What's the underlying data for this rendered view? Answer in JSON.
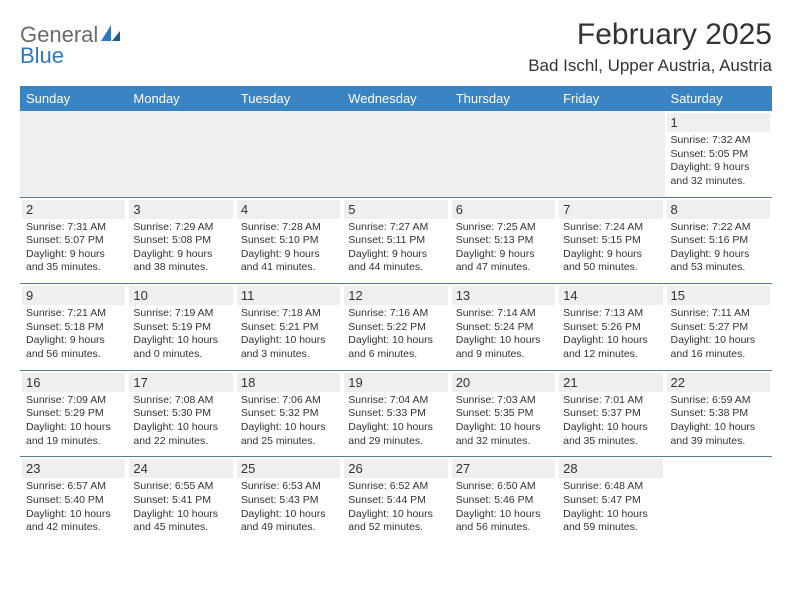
{
  "brand": {
    "part1": "General",
    "part2": "Blue",
    "sail_color": "#2f78bd"
  },
  "header": {
    "month_title": "February 2025",
    "location": "Bad Ischl, Upper Austria, Austria"
  },
  "colors": {
    "header_bg": "#3b84c4",
    "header_text": "#ffffff",
    "row_divider": "#5a7a97",
    "daynum_bg": "#efefef",
    "text": "#333333"
  },
  "calendar": {
    "day_headers": [
      "Sunday",
      "Monday",
      "Tuesday",
      "Wednesday",
      "Thursday",
      "Friday",
      "Saturday"
    ],
    "weeks": [
      [
        null,
        null,
        null,
        null,
        null,
        null,
        {
          "n": "1",
          "sr": "7:32 AM",
          "ss": "5:05 PM",
          "dl": "9 hours and 32 minutes."
        }
      ],
      [
        {
          "n": "2",
          "sr": "7:31 AM",
          "ss": "5:07 PM",
          "dl": "9 hours and 35 minutes."
        },
        {
          "n": "3",
          "sr": "7:29 AM",
          "ss": "5:08 PM",
          "dl": "9 hours and 38 minutes."
        },
        {
          "n": "4",
          "sr": "7:28 AM",
          "ss": "5:10 PM",
          "dl": "9 hours and 41 minutes."
        },
        {
          "n": "5",
          "sr": "7:27 AM",
          "ss": "5:11 PM",
          "dl": "9 hours and 44 minutes."
        },
        {
          "n": "6",
          "sr": "7:25 AM",
          "ss": "5:13 PM",
          "dl": "9 hours and 47 minutes."
        },
        {
          "n": "7",
          "sr": "7:24 AM",
          "ss": "5:15 PM",
          "dl": "9 hours and 50 minutes."
        },
        {
          "n": "8",
          "sr": "7:22 AM",
          "ss": "5:16 PM",
          "dl": "9 hours and 53 minutes."
        }
      ],
      [
        {
          "n": "9",
          "sr": "7:21 AM",
          "ss": "5:18 PM",
          "dl": "9 hours and 56 minutes."
        },
        {
          "n": "10",
          "sr": "7:19 AM",
          "ss": "5:19 PM",
          "dl": "10 hours and 0 minutes."
        },
        {
          "n": "11",
          "sr": "7:18 AM",
          "ss": "5:21 PM",
          "dl": "10 hours and 3 minutes."
        },
        {
          "n": "12",
          "sr": "7:16 AM",
          "ss": "5:22 PM",
          "dl": "10 hours and 6 minutes."
        },
        {
          "n": "13",
          "sr": "7:14 AM",
          "ss": "5:24 PM",
          "dl": "10 hours and 9 minutes."
        },
        {
          "n": "14",
          "sr": "7:13 AM",
          "ss": "5:26 PM",
          "dl": "10 hours and 12 minutes."
        },
        {
          "n": "15",
          "sr": "7:11 AM",
          "ss": "5:27 PM",
          "dl": "10 hours and 16 minutes."
        }
      ],
      [
        {
          "n": "16",
          "sr": "7:09 AM",
          "ss": "5:29 PM",
          "dl": "10 hours and 19 minutes."
        },
        {
          "n": "17",
          "sr": "7:08 AM",
          "ss": "5:30 PM",
          "dl": "10 hours and 22 minutes."
        },
        {
          "n": "18",
          "sr": "7:06 AM",
          "ss": "5:32 PM",
          "dl": "10 hours and 25 minutes."
        },
        {
          "n": "19",
          "sr": "7:04 AM",
          "ss": "5:33 PM",
          "dl": "10 hours and 29 minutes."
        },
        {
          "n": "20",
          "sr": "7:03 AM",
          "ss": "5:35 PM",
          "dl": "10 hours and 32 minutes."
        },
        {
          "n": "21",
          "sr": "7:01 AM",
          "ss": "5:37 PM",
          "dl": "10 hours and 35 minutes."
        },
        {
          "n": "22",
          "sr": "6:59 AM",
          "ss": "5:38 PM",
          "dl": "10 hours and 39 minutes."
        }
      ],
      [
        {
          "n": "23",
          "sr": "6:57 AM",
          "ss": "5:40 PM",
          "dl": "10 hours and 42 minutes."
        },
        {
          "n": "24",
          "sr": "6:55 AM",
          "ss": "5:41 PM",
          "dl": "10 hours and 45 minutes."
        },
        {
          "n": "25",
          "sr": "6:53 AM",
          "ss": "5:43 PM",
          "dl": "10 hours and 49 minutes."
        },
        {
          "n": "26",
          "sr": "6:52 AM",
          "ss": "5:44 PM",
          "dl": "10 hours and 52 minutes."
        },
        {
          "n": "27",
          "sr": "6:50 AM",
          "ss": "5:46 PM",
          "dl": "10 hours and 56 minutes."
        },
        {
          "n": "28",
          "sr": "6:48 AM",
          "ss": "5:47 PM",
          "dl": "10 hours and 59 minutes."
        },
        null
      ]
    ],
    "labels": {
      "sunrise": "Sunrise:",
      "sunset": "Sunset:",
      "daylight": "Daylight:"
    }
  }
}
